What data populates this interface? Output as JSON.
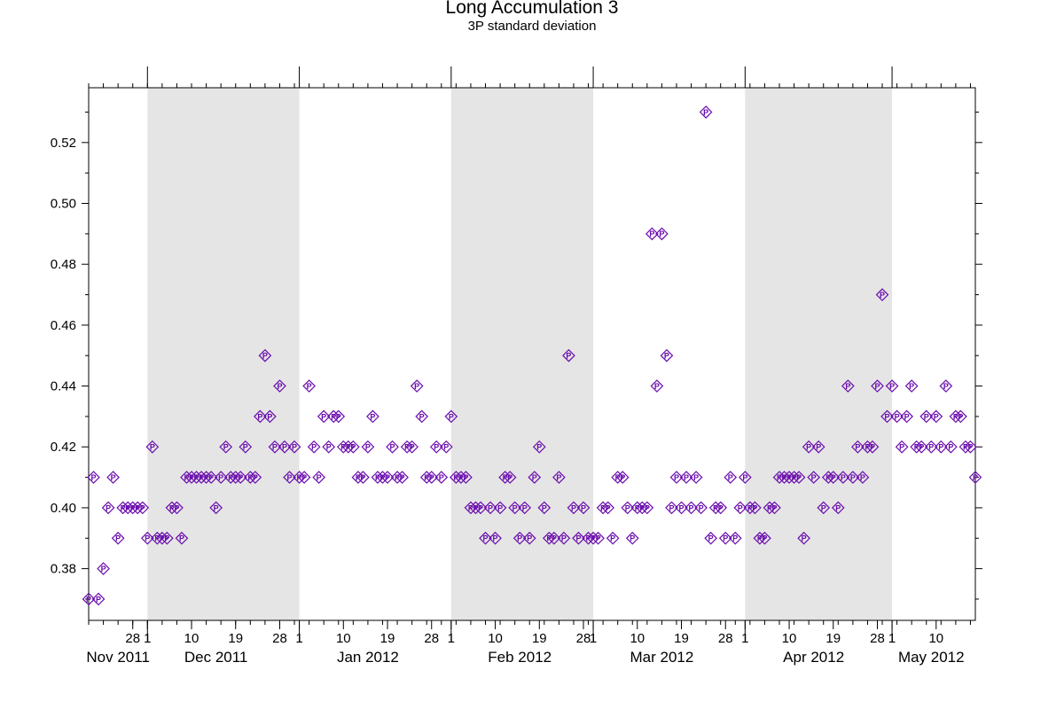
{
  "chart_data": {
    "type": "scatter",
    "title": "Long Accumulation 3",
    "subtitle": "3P standard deviation",
    "xlabel": "",
    "ylabel": "",
    "ylim": [
      0.363,
      0.538
    ],
    "xlim": [
      "2011-11-19",
      "2012-05-18"
    ],
    "y_ticks": [
      0.38,
      0.4,
      0.42,
      0.44,
      0.46,
      0.48,
      0.5,
      0.52
    ],
    "x_day_ticks": [
      {
        "date": "2011-11-28",
        "label": "28"
      },
      {
        "date": "2011-12-01",
        "label": "1"
      },
      {
        "date": "2011-12-10",
        "label": "10"
      },
      {
        "date": "2011-12-19",
        "label": "19"
      },
      {
        "date": "2011-12-28",
        "label": "28"
      },
      {
        "date": "2012-01-01",
        "label": "1"
      },
      {
        "date": "2012-01-10",
        "label": "10"
      },
      {
        "date": "2012-01-19",
        "label": "19"
      },
      {
        "date": "2012-01-28",
        "label": "28"
      },
      {
        "date": "2012-02-01",
        "label": "1"
      },
      {
        "date": "2012-02-10",
        "label": "10"
      },
      {
        "date": "2012-02-19",
        "label": "19"
      },
      {
        "date": "2012-02-28",
        "label": "28"
      },
      {
        "date": "2012-03-01",
        "label": "1"
      },
      {
        "date": "2012-03-10",
        "label": "10"
      },
      {
        "date": "2012-03-19",
        "label": "19"
      },
      {
        "date": "2012-03-28",
        "label": "28"
      },
      {
        "date": "2012-04-01",
        "label": "1"
      },
      {
        "date": "2012-04-10",
        "label": "10"
      },
      {
        "date": "2012-04-19",
        "label": "19"
      },
      {
        "date": "2012-04-28",
        "label": "28"
      },
      {
        "date": "2012-05-01",
        "label": "1"
      },
      {
        "date": "2012-05-10",
        "label": "10"
      }
    ],
    "month_labels": [
      {
        "date": "2011-11-25",
        "label": "Nov 2011"
      },
      {
        "date": "2011-12-15",
        "label": "Dec 2011"
      },
      {
        "date": "2012-01-15",
        "label": "Jan 2012"
      },
      {
        "date": "2012-02-15",
        "label": "Feb 2012"
      },
      {
        "date": "2012-03-15",
        "label": "Mar 2012"
      },
      {
        "date": "2012-04-15",
        "label": "Apr 2012"
      },
      {
        "date": "2012-05-09",
        "label": "May 2012"
      }
    ],
    "shaded_bands": [
      {
        "start": "2011-12-01",
        "end": "2012-01-01"
      },
      {
        "start": "2012-02-01",
        "end": "2012-03-01"
      },
      {
        "start": "2012-04-01",
        "end": "2012-05-01"
      }
    ],
    "grid": false,
    "band_color": "#e5e5e5",
    "marker_color": "#6a0dad",
    "marker_label": "P",
    "series": [
      {
        "points": [
          [
            "2011-11-19",
            0.37
          ],
          [
            "2011-11-20",
            0.41
          ],
          [
            "2011-11-21",
            0.37
          ],
          [
            "2011-11-22",
            0.38
          ],
          [
            "2011-11-23",
            0.4
          ],
          [
            "2011-11-24",
            0.41
          ],
          [
            "2011-11-25",
            0.39
          ],
          [
            "2011-11-26",
            0.4
          ],
          [
            "2011-11-27",
            0.4
          ],
          [
            "2011-11-28",
            0.4
          ],
          [
            "2011-11-29",
            0.4
          ],
          [
            "2011-11-30",
            0.4
          ],
          [
            "2011-12-01",
            0.39
          ],
          [
            "2011-12-02",
            0.42
          ],
          [
            "2011-12-03",
            0.39
          ],
          [
            "2011-12-04",
            0.39
          ],
          [
            "2011-12-05",
            0.39
          ],
          [
            "2011-12-06",
            0.4
          ],
          [
            "2011-12-07",
            0.4
          ],
          [
            "2011-12-08",
            0.39
          ],
          [
            "2011-12-09",
            0.41
          ],
          [
            "2011-12-10",
            0.41
          ],
          [
            "2011-12-11",
            0.41
          ],
          [
            "2011-12-12",
            0.41
          ],
          [
            "2011-12-13",
            0.41
          ],
          [
            "2011-12-14",
            0.41
          ],
          [
            "2011-12-15",
            0.4
          ],
          [
            "2011-12-16",
            0.41
          ],
          [
            "2011-12-17",
            0.42
          ],
          [
            "2011-12-18",
            0.41
          ],
          [
            "2011-12-19",
            0.41
          ],
          [
            "2011-12-20",
            0.41
          ],
          [
            "2011-12-21",
            0.42
          ],
          [
            "2011-12-22",
            0.41
          ],
          [
            "2011-12-23",
            0.41
          ],
          [
            "2011-12-24",
            0.43
          ],
          [
            "2011-12-25",
            0.45
          ],
          [
            "2011-12-26",
            0.43
          ],
          [
            "2011-12-27",
            0.42
          ],
          [
            "2011-12-28",
            0.44
          ],
          [
            "2011-12-29",
            0.42
          ],
          [
            "2011-12-30",
            0.41
          ],
          [
            "2011-12-31",
            0.42
          ],
          [
            "2012-01-01",
            0.41
          ],
          [
            "2012-01-02",
            0.41
          ],
          [
            "2012-01-03",
            0.44
          ],
          [
            "2012-01-04",
            0.42
          ],
          [
            "2012-01-05",
            0.41
          ],
          [
            "2012-01-06",
            0.43
          ],
          [
            "2012-01-07",
            0.42
          ],
          [
            "2012-01-08",
            0.43
          ],
          [
            "2012-01-09",
            0.43
          ],
          [
            "2012-01-10",
            0.42
          ],
          [
            "2012-01-11",
            0.42
          ],
          [
            "2012-01-12",
            0.42
          ],
          [
            "2012-01-13",
            0.41
          ],
          [
            "2012-01-14",
            0.41
          ],
          [
            "2012-01-15",
            0.42
          ],
          [
            "2012-01-16",
            0.43
          ],
          [
            "2012-01-17",
            0.41
          ],
          [
            "2012-01-18",
            0.41
          ],
          [
            "2012-01-19",
            0.41
          ],
          [
            "2012-01-20",
            0.42
          ],
          [
            "2012-01-21",
            0.41
          ],
          [
            "2012-01-22",
            0.41
          ],
          [
            "2012-01-23",
            0.42
          ],
          [
            "2012-01-24",
            0.42
          ],
          [
            "2012-01-25",
            0.44
          ],
          [
            "2012-01-26",
            0.43
          ],
          [
            "2012-01-27",
            0.41
          ],
          [
            "2012-01-28",
            0.41
          ],
          [
            "2012-01-29",
            0.42
          ],
          [
            "2012-01-30",
            0.41
          ],
          [
            "2012-01-31",
            0.42
          ],
          [
            "2012-02-01",
            0.43
          ],
          [
            "2012-02-02",
            0.41
          ],
          [
            "2012-02-03",
            0.41
          ],
          [
            "2012-02-04",
            0.41
          ],
          [
            "2012-02-05",
            0.4
          ],
          [
            "2012-02-06",
            0.4
          ],
          [
            "2012-02-07",
            0.4
          ],
          [
            "2012-02-08",
            0.39
          ],
          [
            "2012-02-09",
            0.4
          ],
          [
            "2012-02-10",
            0.39
          ],
          [
            "2012-02-11",
            0.4
          ],
          [
            "2012-02-12",
            0.41
          ],
          [
            "2012-02-13",
            0.41
          ],
          [
            "2012-02-14",
            0.4
          ],
          [
            "2012-02-15",
            0.39
          ],
          [
            "2012-02-16",
            0.4
          ],
          [
            "2012-02-17",
            0.39
          ],
          [
            "2012-02-18",
            0.41
          ],
          [
            "2012-02-19",
            0.42
          ],
          [
            "2012-02-20",
            0.4
          ],
          [
            "2012-02-21",
            0.39
          ],
          [
            "2012-02-22",
            0.39
          ],
          [
            "2012-02-23",
            0.41
          ],
          [
            "2012-02-24",
            0.39
          ],
          [
            "2012-02-25",
            0.45
          ],
          [
            "2012-02-26",
            0.4
          ],
          [
            "2012-02-27",
            0.39
          ],
          [
            "2012-02-28",
            0.4
          ],
          [
            "2012-02-29",
            0.39
          ],
          [
            "2012-03-01",
            0.39
          ],
          [
            "2012-03-02",
            0.39
          ],
          [
            "2012-03-03",
            0.4
          ],
          [
            "2012-03-04",
            0.4
          ],
          [
            "2012-03-05",
            0.39
          ],
          [
            "2012-03-06",
            0.41
          ],
          [
            "2012-03-07",
            0.41
          ],
          [
            "2012-03-08",
            0.4
          ],
          [
            "2012-03-09",
            0.39
          ],
          [
            "2012-03-10",
            0.4
          ],
          [
            "2012-03-11",
            0.4
          ],
          [
            "2012-03-12",
            0.4
          ],
          [
            "2012-03-13",
            0.49
          ],
          [
            "2012-03-14",
            0.44
          ],
          [
            "2012-03-15",
            0.49
          ],
          [
            "2012-03-16",
            0.45
          ],
          [
            "2012-03-17",
            0.4
          ],
          [
            "2012-03-18",
            0.41
          ],
          [
            "2012-03-19",
            0.4
          ],
          [
            "2012-03-20",
            0.41
          ],
          [
            "2012-03-21",
            0.4
          ],
          [
            "2012-03-22",
            0.41
          ],
          [
            "2012-03-23",
            0.4
          ],
          [
            "2012-03-24",
            0.53
          ],
          [
            "2012-03-25",
            0.39
          ],
          [
            "2012-03-26",
            0.4
          ],
          [
            "2012-03-27",
            0.4
          ],
          [
            "2012-03-28",
            0.39
          ],
          [
            "2012-03-29",
            0.41
          ],
          [
            "2012-03-30",
            0.39
          ],
          [
            "2012-03-31",
            0.4
          ],
          [
            "2012-04-01",
            0.41
          ],
          [
            "2012-04-02",
            0.4
          ],
          [
            "2012-04-03",
            0.4
          ],
          [
            "2012-04-04",
            0.39
          ],
          [
            "2012-04-05",
            0.39
          ],
          [
            "2012-04-06",
            0.4
          ],
          [
            "2012-04-07",
            0.4
          ],
          [
            "2012-04-08",
            0.41
          ],
          [
            "2012-04-09",
            0.41
          ],
          [
            "2012-04-10",
            0.41
          ],
          [
            "2012-04-11",
            0.41
          ],
          [
            "2012-04-12",
            0.41
          ],
          [
            "2012-04-13",
            0.39
          ],
          [
            "2012-04-14",
            0.42
          ],
          [
            "2012-04-15",
            0.41
          ],
          [
            "2012-04-16",
            0.42
          ],
          [
            "2012-04-17",
            0.4
          ],
          [
            "2012-04-18",
            0.41
          ],
          [
            "2012-04-19",
            0.41
          ],
          [
            "2012-04-20",
            0.4
          ],
          [
            "2012-04-21",
            0.41
          ],
          [
            "2012-04-22",
            0.44
          ],
          [
            "2012-04-23",
            0.41
          ],
          [
            "2012-04-24",
            0.42
          ],
          [
            "2012-04-25",
            0.41
          ],
          [
            "2012-04-26",
            0.42
          ],
          [
            "2012-04-27",
            0.42
          ],
          [
            "2012-04-28",
            0.44
          ],
          [
            "2012-04-29",
            0.47
          ],
          [
            "2012-04-30",
            0.43
          ],
          [
            "2012-05-01",
            0.44
          ],
          [
            "2012-05-02",
            0.43
          ],
          [
            "2012-05-03",
            0.42
          ],
          [
            "2012-05-04",
            0.43
          ],
          [
            "2012-05-05",
            0.44
          ],
          [
            "2012-05-06",
            0.42
          ],
          [
            "2012-05-07",
            0.42
          ],
          [
            "2012-05-08",
            0.43
          ],
          [
            "2012-05-09",
            0.42
          ],
          [
            "2012-05-10",
            0.43
          ],
          [
            "2012-05-11",
            0.42
          ],
          [
            "2012-05-12",
            0.44
          ],
          [
            "2012-05-13",
            0.42
          ],
          [
            "2012-05-14",
            0.43
          ],
          [
            "2012-05-15",
            0.43
          ],
          [
            "2012-05-16",
            0.42
          ],
          [
            "2012-05-17",
            0.42
          ],
          [
            "2012-05-18",
            0.41
          ]
        ]
      }
    ]
  }
}
